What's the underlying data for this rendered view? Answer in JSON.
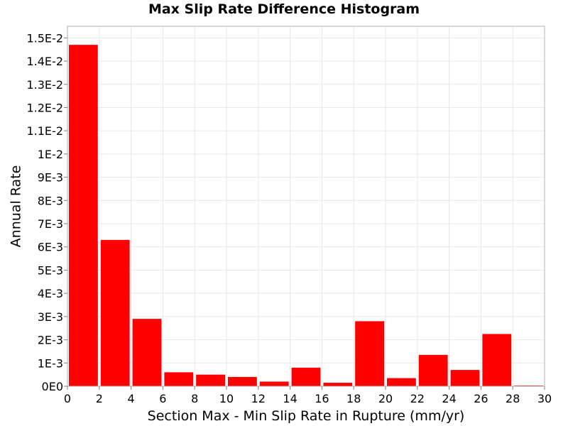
{
  "chart_data": {
    "type": "bar",
    "title": "Max Slip Rate Difference Histogram",
    "xlabel": "Section Max - Min Slip Rate in Rupture (mm/yr)",
    "ylabel": "Annual Rate",
    "xlim": [
      0,
      30
    ],
    "ylim": [
      0,
      0.0155
    ],
    "bin_width": 2,
    "x": [
      1,
      3,
      5,
      7,
      9,
      11,
      13,
      15,
      17,
      19,
      21,
      23,
      25,
      27,
      29
    ],
    "values": [
      0.0147,
      0.0063,
      0.0029,
      0.0006,
      0.0005,
      0.0004,
      0.0002,
      0.0008,
      0.00015,
      0.0028,
      0.00035,
      0.00135,
      0.0007,
      0.00225,
      3e-05
    ],
    "x_ticks": [
      "0",
      "2",
      "4",
      "6",
      "8",
      "10",
      "12",
      "14",
      "16",
      "18",
      "20",
      "22",
      "24",
      "26",
      "28",
      "30"
    ],
    "y_ticks": [
      "0E0",
      "1E-3",
      "2E-3",
      "3E-3",
      "4E-3",
      "5E-3",
      "6E-3",
      "7E-3",
      "8E-3",
      "9E-3",
      "1E-2",
      "1.1E-2",
      "1.2E-2",
      "1.3E-2",
      "1.4E-2",
      "1.5E-2"
    ],
    "grid": true,
    "bar_color": "#ff0000"
  }
}
